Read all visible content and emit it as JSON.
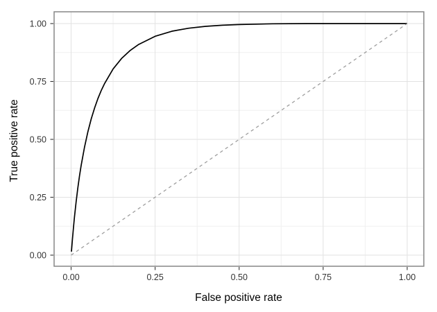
{
  "chart_data": {
    "type": "line",
    "title": "",
    "xlabel": "False positive rate",
    "ylabel": "True positive rate",
    "xlim": [
      0,
      1
    ],
    "ylim": [
      0,
      1
    ],
    "x_ticks": {
      "values": [
        0,
        0.25,
        0.5,
        0.75,
        1
      ],
      "labels": [
        "0.00",
        "0.25",
        "0.50",
        "0.75",
        "1.00"
      ]
    },
    "y_ticks": {
      "values": [
        0,
        0.25,
        0.5,
        0.75,
        1
      ],
      "labels": [
        "0.00",
        "0.25",
        "0.50",
        "0.75",
        "1.00"
      ]
    },
    "minor_gridlines": [
      0.125,
      0.375,
      0.625,
      0.875
    ],
    "grid": "major+minor",
    "legend": "none",
    "series": [
      {
        "name": "roc-curve",
        "style": "solid",
        "color": "#000000",
        "width": 1.7,
        "points": [
          [
            0.001,
            0.015
          ],
          [
            0.002,
            0.033
          ],
          [
            0.004,
            0.069
          ],
          [
            0.006,
            0.102
          ],
          [
            0.008,
            0.134
          ],
          [
            0.01,
            0.164
          ],
          [
            0.015,
            0.231
          ],
          [
            0.02,
            0.29
          ],
          [
            0.025,
            0.342
          ],
          [
            0.03,
            0.388
          ],
          [
            0.04,
            0.467
          ],
          [
            0.05,
            0.533
          ],
          [
            0.06,
            0.589
          ],
          [
            0.07,
            0.636
          ],
          [
            0.08,
            0.677
          ],
          [
            0.09,
            0.712
          ],
          [
            0.1,
            0.742
          ],
          [
            0.125,
            0.804
          ],
          [
            0.15,
            0.849
          ],
          [
            0.175,
            0.883
          ],
          [
            0.2,
            0.909
          ],
          [
            0.25,
            0.945
          ],
          [
            0.3,
            0.967
          ],
          [
            0.35,
            0.98
          ],
          [
            0.4,
            0.988
          ],
          [
            0.45,
            0.993
          ],
          [
            0.5,
            0.996
          ],
          [
            0.6,
            0.999
          ],
          [
            0.7,
            1.0
          ],
          [
            0.8,
            1.0
          ],
          [
            0.9,
            1.0
          ],
          [
            1.0,
            1.0
          ]
        ]
      },
      {
        "name": "chance-diagonal",
        "style": "dashed",
        "color": "#9e9e9e",
        "width": 1.3,
        "points": [
          [
            0,
            0
          ],
          [
            1,
            1
          ]
        ]
      }
    ],
    "theme": {
      "background": "#ffffff",
      "panel_background": "#ffffff",
      "panel_border": "#868686",
      "grid_major": "#e2e2e2",
      "grid_minor": "#f0f0f0",
      "tick_color": "#333333",
      "tick_label_color": "#333333",
      "axis_title_color": "#000000"
    }
  }
}
